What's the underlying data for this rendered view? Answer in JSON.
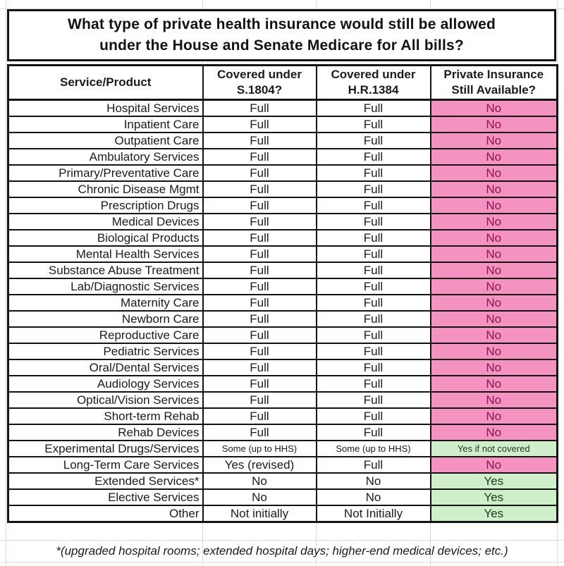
{
  "title": {
    "line1": "What type of private health insurance would still be allowed",
    "line2": "under the House and Senate Medicare for All bills?"
  },
  "table": {
    "columns": [
      "Service/Product",
      "Covered under S.1804?",
      "Covered under H.R.1384",
      "Private Insurance Still Available?"
    ],
    "rows": [
      {
        "service": "Hospital Services",
        "s1804": "Full",
        "hr1384": "Full",
        "available": "No",
        "status": "no"
      },
      {
        "service": "Inpatient Care",
        "s1804": "Full",
        "hr1384": "Full",
        "available": "No",
        "status": "no"
      },
      {
        "service": "Outpatient Care",
        "s1804": "Full",
        "hr1384": "Full",
        "available": "No",
        "status": "no"
      },
      {
        "service": "Ambulatory Services",
        "s1804": "Full",
        "hr1384": "Full",
        "available": "No",
        "status": "no"
      },
      {
        "service": "Primary/Preventative Care",
        "s1804": "Full",
        "hr1384": "Full",
        "available": "No",
        "status": "no"
      },
      {
        "service": "Chronic Disease Mgmt",
        "s1804": "Full",
        "hr1384": "Full",
        "available": "No",
        "status": "no"
      },
      {
        "service": "Prescription Drugs",
        "s1804": "Full",
        "hr1384": "Full",
        "available": "No",
        "status": "no"
      },
      {
        "service": "Medical Devices",
        "s1804": "Full",
        "hr1384": "Full",
        "available": "No",
        "status": "no"
      },
      {
        "service": "Biological Products",
        "s1804": "Full",
        "hr1384": "Full",
        "available": "No",
        "status": "no"
      },
      {
        "service": "Mental Health Services",
        "s1804": "Full",
        "hr1384": "Full",
        "available": "No",
        "status": "no"
      },
      {
        "service": "Substance Abuse Treatment",
        "s1804": "Full",
        "hr1384": "Full",
        "available": "No",
        "status": "no"
      },
      {
        "service": "Lab/Diagnostic Services",
        "s1804": "Full",
        "hr1384": "Full",
        "available": "No",
        "status": "no"
      },
      {
        "service": "Maternity Care",
        "s1804": "Full",
        "hr1384": "Full",
        "available": "No",
        "status": "no"
      },
      {
        "service": "Newborn Care",
        "s1804": "Full",
        "hr1384": "Full",
        "available": "No",
        "status": "no"
      },
      {
        "service": "Reproductive Care",
        "s1804": "Full",
        "hr1384": "Full",
        "available": "No",
        "status": "no"
      },
      {
        "service": "Pediatric Services",
        "s1804": "Full",
        "hr1384": "Full",
        "available": "No",
        "status": "no"
      },
      {
        "service": "Oral/Dental Services",
        "s1804": "Full",
        "hr1384": "Full",
        "available": "No",
        "status": "no"
      },
      {
        "service": "Audiology Services",
        "s1804": "Full",
        "hr1384": "Full",
        "available": "No",
        "status": "no"
      },
      {
        "service": "Optical/Vision Services",
        "s1804": "Full",
        "hr1384": "Full",
        "available": "No",
        "status": "no"
      },
      {
        "service": "Short-term Rehab",
        "s1804": "Full",
        "hr1384": "Full",
        "available": "No",
        "status": "no"
      },
      {
        "service": "Rehab Devices",
        "s1804": "Full",
        "hr1384": "Full",
        "available": "No",
        "status": "no"
      },
      {
        "service": "Experimental Drugs/Services",
        "s1804": "Some (up to HHS)",
        "hr1384": "Some (up to HHS)",
        "available": "Yes if not covered",
        "status": "yes",
        "small": true
      },
      {
        "service": "Long-Term Care Services",
        "s1804": "Yes (revised)",
        "hr1384": "Full",
        "available": "No",
        "status": "no"
      },
      {
        "service": "Extended Services*",
        "s1804": "No",
        "hr1384": "No",
        "available": "Yes",
        "status": "yes"
      },
      {
        "service": "Elective Services",
        "s1804": "No",
        "hr1384": "No",
        "available": "Yes",
        "status": "yes"
      },
      {
        "service": "Other",
        "s1804": "Not initially",
        "hr1384": "Not Initially",
        "available": "Yes",
        "status": "yes"
      }
    ]
  },
  "colors": {
    "no_bg": "#F492C0",
    "no_text": "#8E1254",
    "yes_bg": "#CFEFCB",
    "yes_text": "#1C3A1C"
  },
  "footnote": "*(upgraded hospital rooms; extended hospital days; higher-end medical devices; etc.)"
}
